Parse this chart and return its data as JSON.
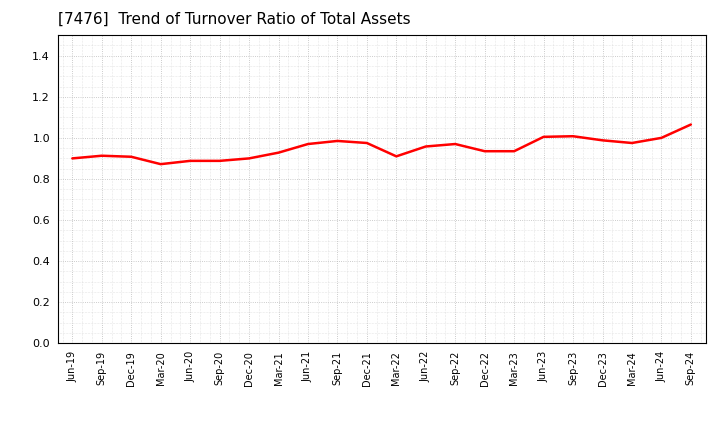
{
  "title": "[7476]  Trend of Turnover Ratio of Total Assets",
  "title_fontsize": 11,
  "line_color": "#FF0000",
  "line_width": 1.8,
  "background_color": "#FFFFFF",
  "plot_bg_color": "#FFFFFF",
  "grid_color": "#BBBBBB",
  "ylim": [
    0.0,
    1.5
  ],
  "yticks": [
    0.0,
    0.2,
    0.4,
    0.6,
    0.8,
    1.0,
    1.2,
    1.4
  ],
  "x_labels": [
    "Jun-19",
    "Sep-19",
    "Dec-19",
    "Mar-20",
    "Jun-20",
    "Sep-20",
    "Dec-20",
    "Mar-21",
    "Jun-21",
    "Sep-21",
    "Dec-21",
    "Mar-22",
    "Jun-22",
    "Sep-22",
    "Dec-22",
    "Mar-23",
    "Jun-23",
    "Sep-23",
    "Dec-23",
    "Mar-24",
    "Jun-24",
    "Sep-24"
  ],
  "values": [
    0.9,
    0.913,
    0.908,
    0.872,
    0.888,
    0.888,
    0.9,
    0.928,
    0.97,
    0.985,
    0.975,
    0.91,
    0.958,
    0.97,
    0.935,
    0.935,
    1.005,
    1.008,
    0.988,
    0.975,
    1.0,
    1.065
  ]
}
